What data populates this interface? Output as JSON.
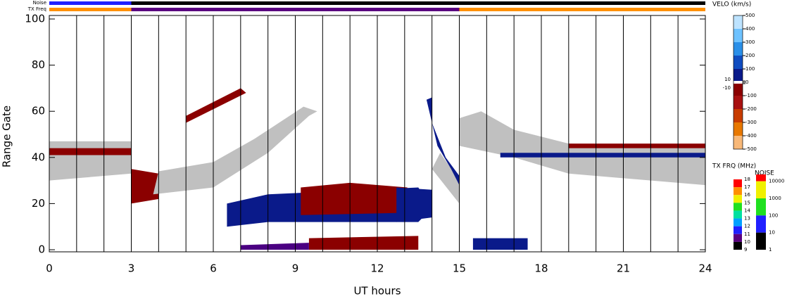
{
  "chart_data": {
    "type": "range-time",
    "x_label": "UT hours",
    "y_label": "Range Gate",
    "xlim": [
      0,
      24
    ],
    "xticks": [
      0,
      3,
      6,
      9,
      12,
      15,
      18,
      21,
      24
    ],
    "xgrid": [
      1,
      2,
      3,
      4,
      5,
      6,
      7,
      8,
      9,
      10,
      11,
      12,
      13,
      14,
      15,
      16,
      17,
      18,
      19,
      20,
      21,
      22,
      23
    ],
    "ylim": [
      0,
      100
    ],
    "yticks": [
      0,
      20,
      40,
      60,
      80,
      100
    ],
    "noise_bar": {
      "label": "Noise",
      "segments": [
        {
          "t": [
            0,
            24
          ],
          "value": 1
        },
        {
          "t": [
            0,
            3
          ],
          "value": 10
        }
      ]
    },
    "freq_bar": {
      "label": "TX Freq",
      "segments": [
        {
          "t": [
            0,
            3
          ],
          "value": 16
        },
        {
          "t": [
            3,
            15
          ],
          "value": 10
        },
        {
          "t": [
            15,
            24
          ],
          "value": 16
        }
      ]
    },
    "velocity_scale": {
      "title": "VELO (km/s)",
      "ticks": [
        500,
        400,
        300,
        200,
        100,
        10,
        0,
        -10,
        -100,
        -200,
        -300,
        -400,
        -500
      ],
      "colors": [
        "#bde3ff",
        "#6ec2ff",
        "#2a8fe8",
        "#0f4cc0",
        "#0a1a8a",
        "#ffffff",
        "#ffffff",
        "#8b0000",
        "#a81010",
        "#c83c00",
        "#e87800",
        "#f8b878"
      ]
    },
    "freq_scale": {
      "title": "TX FRQ (MHz)",
      "ticks": [
        18,
        17,
        16,
        15,
        14,
        13,
        12,
        11,
        10,
        9
      ],
      "colors": [
        "#ff0000",
        "#ff9000",
        "#f0f000",
        "#20e020",
        "#00e0a0",
        "#00a0ff",
        "#2020ff",
        "#5a0080",
        "#000000"
      ]
    },
    "noise_scale": {
      "title": "NOISE",
      "ticks": [
        10000,
        1000,
        100,
        10,
        1
      ],
      "lim": [
        1,
        25000
      ],
      "colors": [
        "#ff0000",
        "#f0f000",
        "#20e020",
        "#2020ff",
        "#000000"
      ]
    },
    "regions": [
      {
        "color": "#c0c0c0",
        "t": [
          0,
          3,
          3,
          0
        ],
        "gate": [
          30,
          33,
          47,
          47
        ]
      },
      {
        "color": "#8b0000",
        "t": [
          0,
          3,
          3,
          0
        ],
        "gate": [
          41,
          41,
          44,
          44
        ]
      },
      {
        "color": "#8b0000",
        "t": [
          3,
          4,
          4,
          3
        ],
        "gate": [
          20,
          22,
          33,
          35
        ]
      },
      {
        "color": "#c0c0c0",
        "t": [
          3.8,
          6,
          8,
          9.5,
          9.8,
          9.3,
          7.5,
          6,
          4
        ],
        "gate": [
          24,
          27,
          42,
          58,
          60,
          62,
          48,
          38,
          34
        ]
      },
      {
        "color": "#8b0000",
        "t": [
          5,
          7,
          7.2,
          5
        ],
        "gate": [
          58,
          70,
          68,
          55
        ]
      },
      {
        "color": "#0a1a8a",
        "t": [
          6.5,
          8,
          13.5,
          14,
          13.5,
          8,
          6.5
        ],
        "gate": [
          10,
          12,
          12,
          18,
          27,
          24,
          20
        ]
      },
      {
        "color": "#8b0000",
        "t": [
          9.2,
          13,
          13.1,
          11,
          9.2
        ],
        "gate": [
          15,
          16,
          27,
          29,
          27
        ]
      },
      {
        "color": "#0a1a8a",
        "t": [
          12.7,
          14,
          14,
          12.7
        ],
        "gate": [
          12,
          14,
          26,
          27
        ]
      },
      {
        "color": "#c0c0c0",
        "t": [
          14,
          15,
          15,
          14.3
        ],
        "gate": [
          35,
          20,
          30,
          42
        ]
      },
      {
        "color": "#0a1a8a",
        "t": [
          13.8,
          14.2,
          14.7,
          15,
          15,
          14.5,
          14,
          14
        ],
        "gate": [
          65,
          45,
          35,
          28,
          32,
          40,
          55,
          66
        ]
      },
      {
        "color": "#8b0000",
        "t": [
          9.5,
          13.5,
          13.5,
          9.5
        ],
        "gate": [
          0,
          0,
          6,
          5
        ]
      },
      {
        "color": "#4b0082",
        "t": [
          7,
          9.5,
          9.5,
          7
        ],
        "gate": [
          0,
          0,
          3,
          2
        ]
      },
      {
        "color": "#c0c0c0",
        "t": [
          15,
          17,
          19,
          24,
          24,
          19,
          17,
          15.8,
          15
        ],
        "gate": [
          45,
          40,
          33,
          28,
          44,
          46,
          52,
          60,
          57
        ]
      },
      {
        "color": "#8b0000",
        "t": [
          19,
          24,
          24,
          19
        ],
        "gate": [
          44,
          44,
          46,
          46
        ]
      },
      {
        "color": "#0a1a8a",
        "t": [
          16.5,
          24,
          24,
          16.5
        ],
        "gate": [
          40,
          40,
          42,
          42
        ]
      },
      {
        "color": "#0a1a8a",
        "t": [
          15.5,
          17.5,
          17.5,
          15.5
        ],
        "gate": [
          0,
          0,
          5,
          5
        ]
      }
    ]
  }
}
